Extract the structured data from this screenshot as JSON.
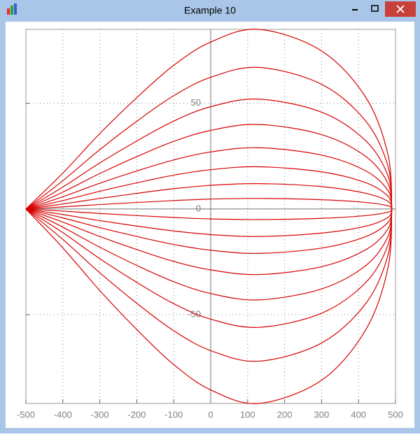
{
  "window": {
    "title": "Example 10"
  },
  "chart_data": {
    "type": "line",
    "x": [
      -500,
      -400,
      -300,
      -200,
      -100,
      0,
      130,
      300,
      420,
      480,
      490
    ],
    "series": [
      {
        "color": "#d80000",
        "values": [
          0,
          17,
          35.7,
          52.7,
          68,
          79,
          85,
          74.8,
          52.7,
          25.5,
          0
        ]
      },
      {
        "color": "#d80000",
        "values": [
          0,
          13.4,
          28.1,
          41.5,
          53.6,
          62.3,
          67,
          59,
          41.5,
          20.1,
          0
        ]
      },
      {
        "color": "#d80000",
        "values": [
          0,
          10.4,
          21.8,
          32.2,
          41.6,
          48.4,
          52,
          45.8,
          32.2,
          15.6,
          0
        ]
      },
      {
        "color": "#d80000",
        "values": [
          0,
          8,
          16.8,
          24.8,
          32,
          37.2,
          40,
          35.2,
          24.8,
          12,
          0
        ]
      },
      {
        "color": "#d80000",
        "values": [
          0,
          5.8,
          12.2,
          18,
          23.2,
          27,
          29,
          25.5,
          18,
          8.7,
          0
        ]
      },
      {
        "color": "#d80000",
        "values": [
          0,
          4,
          8.4,
          12.4,
          16,
          18.6,
          20,
          17.6,
          12.4,
          6,
          0
        ]
      },
      {
        "color": "#d80000",
        "values": [
          0,
          2.4,
          5,
          7.4,
          9.6,
          11.2,
          12,
          10.6,
          7.4,
          3.6,
          0
        ]
      },
      {
        "color": "#d80000",
        "values": [
          0,
          1,
          2.1,
          3.1,
          4,
          4.7,
          5,
          4.4,
          3.1,
          1.5,
          0
        ]
      },
      {
        "color": "#d80000",
        "values": [
          0,
          -18.4,
          -38.6,
          -57,
          -73.6,
          -85.6,
          -92,
          -81,
          -57,
          -27.6,
          0
        ]
      },
      {
        "color": "#d80000",
        "values": [
          0,
          -14.4,
          -30.2,
          -44.6,
          -57.6,
          -67,
          -72,
          -63.4,
          -44.6,
          -21.6,
          0
        ]
      },
      {
        "color": "#d80000",
        "values": [
          0,
          -11.2,
          -23.5,
          -34.7,
          -44.8,
          -52.1,
          -56,
          -49.3,
          -34.7,
          -16.8,
          0
        ]
      },
      {
        "color": "#d80000",
        "values": [
          0,
          -8.6,
          -18.1,
          -26.7,
          -34.4,
          -40,
          -43,
          -37.8,
          -26.7,
          -12.9,
          0
        ]
      },
      {
        "color": "#d80000",
        "values": [
          0,
          -6.2,
          -13,
          -19.2,
          -24.8,
          -28.8,
          -31,
          -27.3,
          -19.2,
          -9.3,
          0
        ]
      },
      {
        "color": "#d80000",
        "values": [
          0,
          -4.2,
          -8.8,
          -13,
          -16.8,
          -19.5,
          -21,
          -18.5,
          -13,
          -6.3,
          0
        ]
      },
      {
        "color": "#d80000",
        "values": [
          0,
          -2.6,
          -5.5,
          -8.1,
          -10.4,
          -12.1,
          -13,
          -11.4,
          -8.1,
          -3.9,
          0
        ]
      },
      {
        "color": "#d80000",
        "values": [
          0,
          -1,
          -2.1,
          -3.1,
          -4,
          -4.7,
          -5,
          -4.4,
          -3.1,
          -1.5,
          0
        ]
      }
    ],
    "xlim": [
      -500,
      500
    ],
    "ylim": [
      -92,
      85
    ],
    "xticks": [
      -500,
      -400,
      -300,
      -200,
      -100,
      0,
      100,
      200,
      300,
      400,
      500
    ],
    "yticks": [
      -50,
      0,
      50
    ],
    "grid": true
  }
}
